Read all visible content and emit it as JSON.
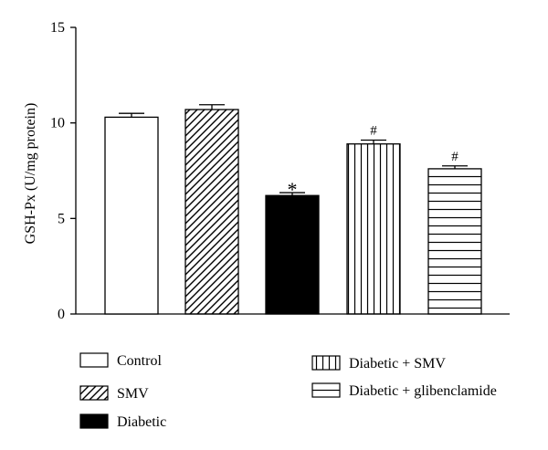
{
  "chart_data": {
    "type": "bar",
    "title": "",
    "xlabel": "",
    "ylabel": "GSH-Px (U/mg protein)",
    "ylim": [
      0,
      15
    ],
    "yticks": [
      0,
      5,
      10,
      15
    ],
    "grid": false,
    "legend_position": "bottom",
    "categories": [
      "Control",
      "SMV",
      "Diabetic",
      "Diabetic + SMV",
      "Diabetic + glibenclamide"
    ],
    "series": [
      {
        "values": [
          10.3,
          10.7,
          6.2,
          8.9,
          7.6
        ],
        "errors": [
          0.2,
          0.25,
          0.15,
          0.2,
          0.15
        ],
        "annotations": [
          "",
          "",
          "*",
          "#",
          "#"
        ],
        "patterns": [
          "none",
          "diagonal",
          "solid",
          "vertical",
          "horizontal"
        ]
      }
    ]
  }
}
